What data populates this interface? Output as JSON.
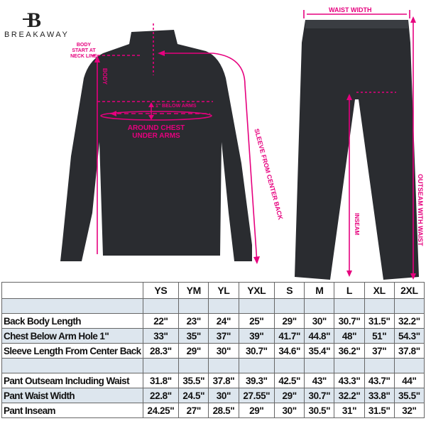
{
  "brand": {
    "name": "BREAKAWAY",
    "logo_letter": "B"
  },
  "colors": {
    "accent": "#e6007e",
    "garment": "#2a2c30",
    "row_tint": "#dde6ee"
  },
  "annotations": {
    "body_start": [
      "BODY",
      "START AT",
      "NECK LINE"
    ],
    "body": "BODY",
    "below_arms": "1\" BELOW ARMS",
    "chest": [
      "AROUND CHEST",
      "UNDER ARMS"
    ],
    "sleeve": "SLEEVE FROM CENTER BACK",
    "waist_width": "WAIST WIDTH",
    "inseam": "INSEAM",
    "outseam": "OUTSEAM WITH WAIST"
  },
  "table": {
    "sizes": [
      "YS",
      "YM",
      "YL",
      "YXL",
      "S",
      "M",
      "L",
      "XL",
      "2XL"
    ],
    "rows": [
      {
        "label": "",
        "values": [
          "",
          "",
          "",
          "",
          "",
          "",
          "",
          "",
          ""
        ],
        "tint": true
      },
      {
        "label": "Back Body Length",
        "values": [
          "22\"",
          "23\"",
          "24\"",
          "25\"",
          "29\"",
          "30\"",
          "30.7\"",
          "31.5\"",
          "32.2\""
        ],
        "tint": false
      },
      {
        "label": "Chest Below Arm Hole 1\"",
        "values": [
          "33\"",
          "35\"",
          "37\"",
          "39\"",
          "41.7\"",
          "44.8\"",
          "48\"",
          "51\"",
          "54.3\""
        ],
        "tint": true
      },
      {
        "label": "Sleeve Length From Center Back",
        "values": [
          "28.3\"",
          "29\"",
          "30\"",
          "30.7\"",
          "34.6\"",
          "35.4\"",
          "36.2\"",
          "37\"",
          "37.8\""
        ],
        "tint": false
      },
      {
        "label": "",
        "values": [
          "",
          "",
          "",
          "",
          "",
          "",
          "",
          "",
          ""
        ],
        "tint": true
      },
      {
        "label": "Pant Outseam Including Waist",
        "values": [
          "31.8\"",
          "35.5\"",
          "37.8\"",
          "39.3\"",
          "42.5\"",
          "43\"",
          "43.3\"",
          "43.7\"",
          "44\""
        ],
        "tint": false
      },
      {
        "label": "Pant Waist Width",
        "values": [
          "22.8\"",
          "24.5\"",
          "30\"",
          "27.55\"",
          "29\"",
          "30.7\"",
          "32.2\"",
          "33.8\"",
          "35.5\""
        ],
        "tint": true
      },
      {
        "label": "Pant Inseam",
        "values": [
          "24.25\"",
          "27\"",
          "28.5\"",
          "29\"",
          "30\"",
          "30.5\"",
          "31\"",
          "31.5\"",
          "32\""
        ],
        "tint": false
      }
    ]
  }
}
